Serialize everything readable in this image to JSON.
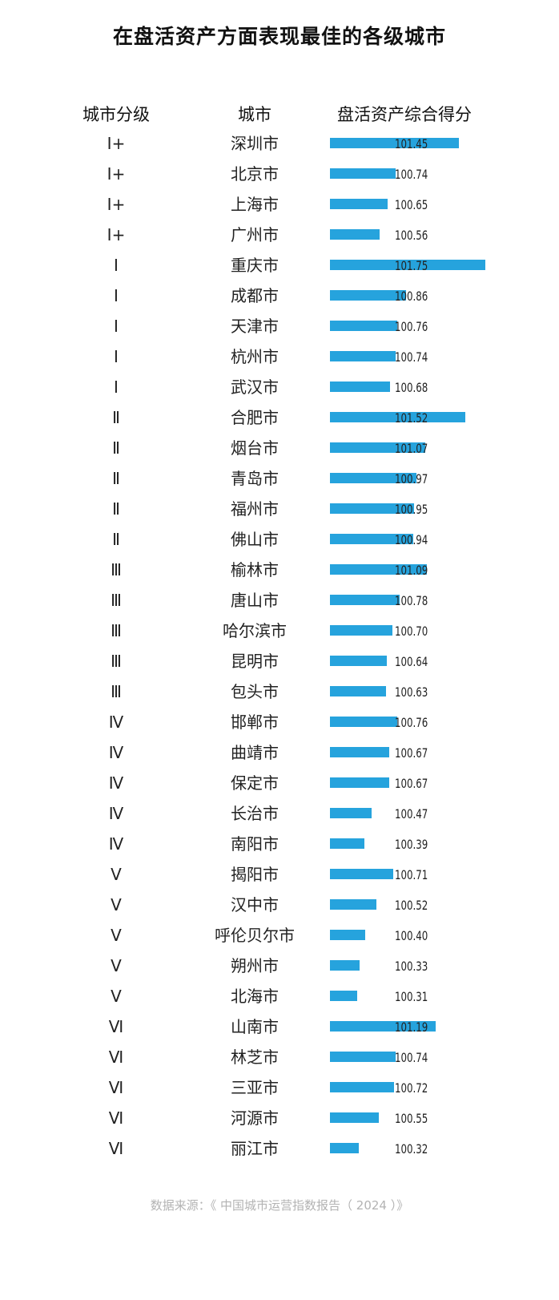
{
  "title": "在盘活资产方面表现最佳的各级城市",
  "headers": {
    "tier": "城市分级",
    "city": "城市",
    "score": "盘活资产综合得分"
  },
  "source": "数据来源：《 中国城市运营指数报告（ 2024 ）》",
  "colors": {
    "bar": "#26a3dd",
    "text": "#222222",
    "source": "#b3b3b3"
  },
  "chart_data": {
    "type": "bar",
    "orientation": "horizontal",
    "title": "在盘活资产方面表现最佳的各级城市",
    "columns": [
      "城市分级",
      "城市",
      "盘活资产综合得分"
    ],
    "rows": [
      {
        "tier": "Ⅰ+",
        "city": "深圳市",
        "score": "101.45",
        "value": 101.45
      },
      {
        "tier": "Ⅰ+",
        "city": "北京市",
        "score": "100.74",
        "value": 100.74
      },
      {
        "tier": "Ⅰ+",
        "city": "上海市",
        "score": "100.65",
        "value": 100.65
      },
      {
        "tier": "Ⅰ+",
        "city": "广州市",
        "score": "100.56",
        "value": 100.56
      },
      {
        "tier": "Ⅰ",
        "city": "重庆市",
        "score": "101.75",
        "value": 101.75
      },
      {
        "tier": "Ⅰ",
        "city": "成都市",
        "score": "100.86",
        "value": 100.86
      },
      {
        "tier": "Ⅰ",
        "city": "天津市",
        "score": "100.76",
        "value": 100.76
      },
      {
        "tier": "Ⅰ",
        "city": "杭州市",
        "score": "100.74",
        "value": 100.74
      },
      {
        "tier": "Ⅰ",
        "city": "武汉市",
        "score": "100.68",
        "value": 100.68
      },
      {
        "tier": "Ⅱ",
        "city": "合肥市",
        "score": "101.52",
        "value": 101.52
      },
      {
        "tier": "Ⅱ",
        "city": "烟台市",
        "score": "101.07",
        "value": 101.07
      },
      {
        "tier": "Ⅱ",
        "city": "青岛市",
        "score": "100.97",
        "value": 100.97
      },
      {
        "tier": "Ⅱ",
        "city": "福州市",
        "score": "100.95",
        "value": 100.95
      },
      {
        "tier": "Ⅱ",
        "city": "佛山市",
        "score": "100.94",
        "value": 100.94
      },
      {
        "tier": "Ⅲ",
        "city": "榆林市",
        "score": "101.09",
        "value": 101.09
      },
      {
        "tier": "Ⅲ",
        "city": "唐山市",
        "score": "100.78",
        "value": 100.78
      },
      {
        "tier": "Ⅲ",
        "city": "哈尔滨市",
        "score": "100.70",
        "value": 100.7
      },
      {
        "tier": "Ⅲ",
        "city": "昆明市",
        "score": "100.64",
        "value": 100.64
      },
      {
        "tier": "Ⅲ",
        "city": "包头市",
        "score": "100.63",
        "value": 100.63
      },
      {
        "tier": "Ⅳ",
        "city": "邯郸市",
        "score": "100.76",
        "value": 100.76
      },
      {
        "tier": "Ⅳ",
        "city": "曲靖市",
        "score": "100.67",
        "value": 100.67
      },
      {
        "tier": "Ⅳ",
        "city": "保定市",
        "score": "100.67",
        "value": 100.67
      },
      {
        "tier": "Ⅳ",
        "city": "长治市",
        "score": "100.47",
        "value": 100.47
      },
      {
        "tier": "Ⅳ",
        "city": "南阳市",
        "score": "100.39",
        "value": 100.39
      },
      {
        "tier": "Ⅴ",
        "city": "揭阳市",
        "score": "100.71",
        "value": 100.71
      },
      {
        "tier": "Ⅴ",
        "city": "汉中市",
        "score": "100.52",
        "value": 100.52
      },
      {
        "tier": "Ⅴ",
        "city": "呼伦贝尔市",
        "score": "100.40",
        "value": 100.4
      },
      {
        "tier": "Ⅴ",
        "city": "朔州市",
        "score": "100.33",
        "value": 100.33
      },
      {
        "tier": "Ⅴ",
        "city": "北海市",
        "score": "100.31",
        "value": 100.31
      },
      {
        "tier": "Ⅵ",
        "city": "山南市",
        "score": "101.19",
        "value": 101.19
      },
      {
        "tier": "Ⅵ",
        "city": "林芝市",
        "score": "100.74",
        "value": 100.74
      },
      {
        "tier": "Ⅵ",
        "city": "三亚市",
        "score": "100.72",
        "value": 100.72
      },
      {
        "tier": "Ⅵ",
        "city": "河源市",
        "score": "100.55",
        "value": 100.55
      },
      {
        "tier": "Ⅵ",
        "city": "丽江市",
        "score": "100.32",
        "value": 100.32
      }
    ],
    "xlim": [
      100,
      101.75
    ],
    "grid": false,
    "legend": "none"
  }
}
